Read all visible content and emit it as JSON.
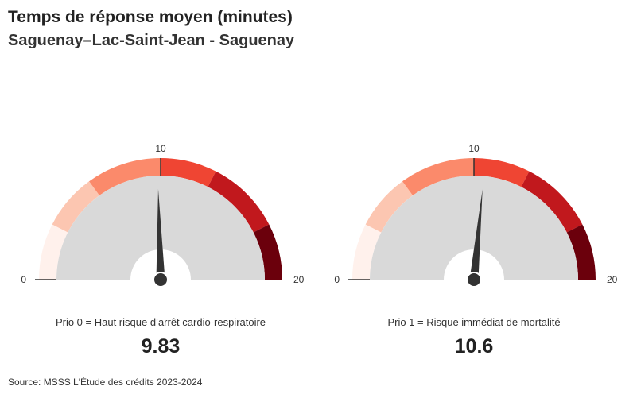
{
  "header": {
    "title": "Temps de réponse moyen (minutes)",
    "subtitle": "Saguenay–Lac-Saint-Jean - Saguenay"
  },
  "source": "Source: MSSS L'Étude des crédits 2023-2024",
  "colors": {
    "bands": [
      "#fff1ec",
      "#fcc6b1",
      "#fb8a6b",
      "#ef4533",
      "#c1181d",
      "#6b000c"
    ],
    "dial": "#d9d9d9",
    "needle": "#333333",
    "tick": "#333333"
  },
  "chart_data": [
    {
      "type": "gauge",
      "label": "Prio 0 = Haut risque d’arrêt cardio-respiratoire",
      "value": 9.83,
      "value_text": "9.83",
      "min": 0,
      "max": 20,
      "mid": 10,
      "tick_labels": {
        "min": "0",
        "mid": "10",
        "max": "20"
      },
      "bands": [
        [
          0,
          3
        ],
        [
          3,
          6
        ],
        [
          6,
          10
        ],
        [
          10,
          13
        ],
        [
          13,
          17
        ],
        [
          17,
          20
        ]
      ]
    },
    {
      "type": "gauge",
      "label": "Prio 1 = Risque immédiat de mortalité",
      "value": 10.6,
      "value_text": "10.6",
      "min": 0,
      "max": 20,
      "mid": 10,
      "tick_labels": {
        "min": "0",
        "mid": "10",
        "max": "20"
      },
      "bands": [
        [
          0,
          3
        ],
        [
          3,
          6
        ],
        [
          6,
          10
        ],
        [
          10,
          13
        ],
        [
          13,
          17
        ],
        [
          17,
          20
        ]
      ]
    }
  ]
}
